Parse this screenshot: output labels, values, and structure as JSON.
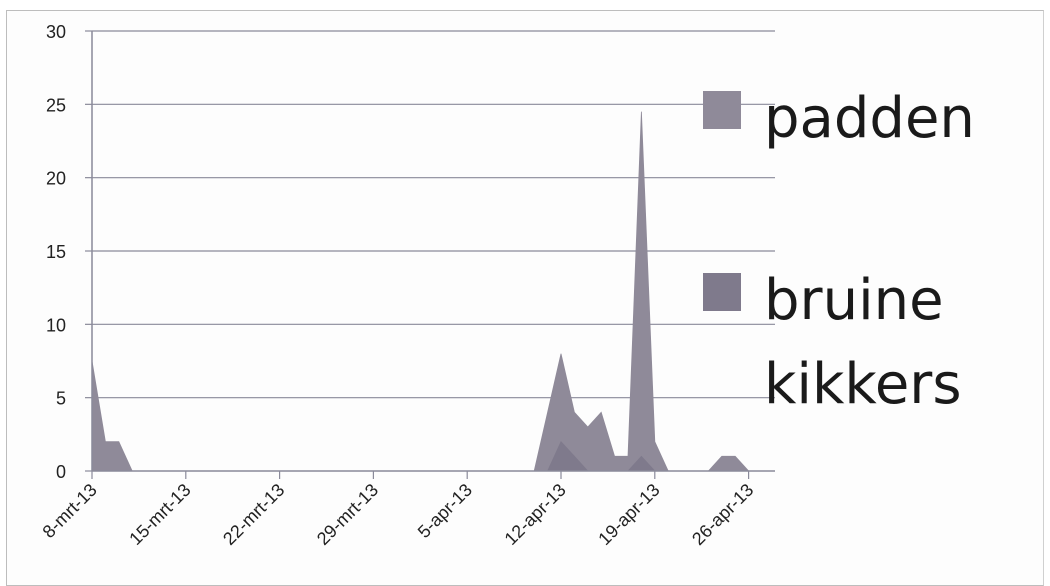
{
  "chart_data": {
    "type": "area",
    "x_labels": [
      "8-mrt-13",
      "15-mrt-13",
      "22-mrt-13",
      "29-mrt-13",
      "5-apr-13",
      "12-apr-13",
      "19-apr-13",
      "26-apr-13"
    ],
    "x_start_label": "8-mrt-13",
    "ylim": [
      0,
      30
    ],
    "y_ticks": [
      0,
      5,
      10,
      15,
      20,
      25,
      30
    ],
    "grid": true,
    "legend_position": "right",
    "series": [
      {
        "name": "padden",
        "color": "#8f8a99",
        "points": [
          [
            "8-mrt-13",
            7.5
          ],
          [
            "9-mrt-13",
            2
          ],
          [
            "10-mrt-13",
            2
          ],
          [
            "11-mrt-13",
            0
          ],
          [
            "5-apr-13",
            0
          ],
          [
            "10-apr-13",
            0
          ],
          [
            "11-apr-13",
            4
          ],
          [
            "12-apr-13",
            8
          ],
          [
            "13-apr-13",
            4
          ],
          [
            "14-apr-13",
            3
          ],
          [
            "15-apr-13",
            4
          ],
          [
            "16-apr-13",
            1
          ],
          [
            "17-apr-13",
            1
          ],
          [
            "18-apr-13",
            24.5
          ],
          [
            "19-apr-13",
            2
          ],
          [
            "20-apr-13",
            0
          ],
          [
            "23-apr-13",
            0
          ],
          [
            "24-apr-13",
            1
          ],
          [
            "25-apr-13",
            1
          ],
          [
            "26-apr-13",
            0
          ]
        ]
      },
      {
        "name": "bruine kikkers",
        "name_lines": [
          "bruine",
          "kikkers"
        ],
        "color": "#7f7a8c",
        "points": [
          [
            "11-apr-13",
            0
          ],
          [
            "12-apr-13",
            2
          ],
          [
            "13-apr-13",
            1
          ],
          [
            "14-apr-13",
            0
          ],
          [
            "17-apr-13",
            0
          ],
          [
            "18-apr-13",
            1
          ],
          [
            "19-apr-13",
            0
          ]
        ]
      }
    ]
  }
}
